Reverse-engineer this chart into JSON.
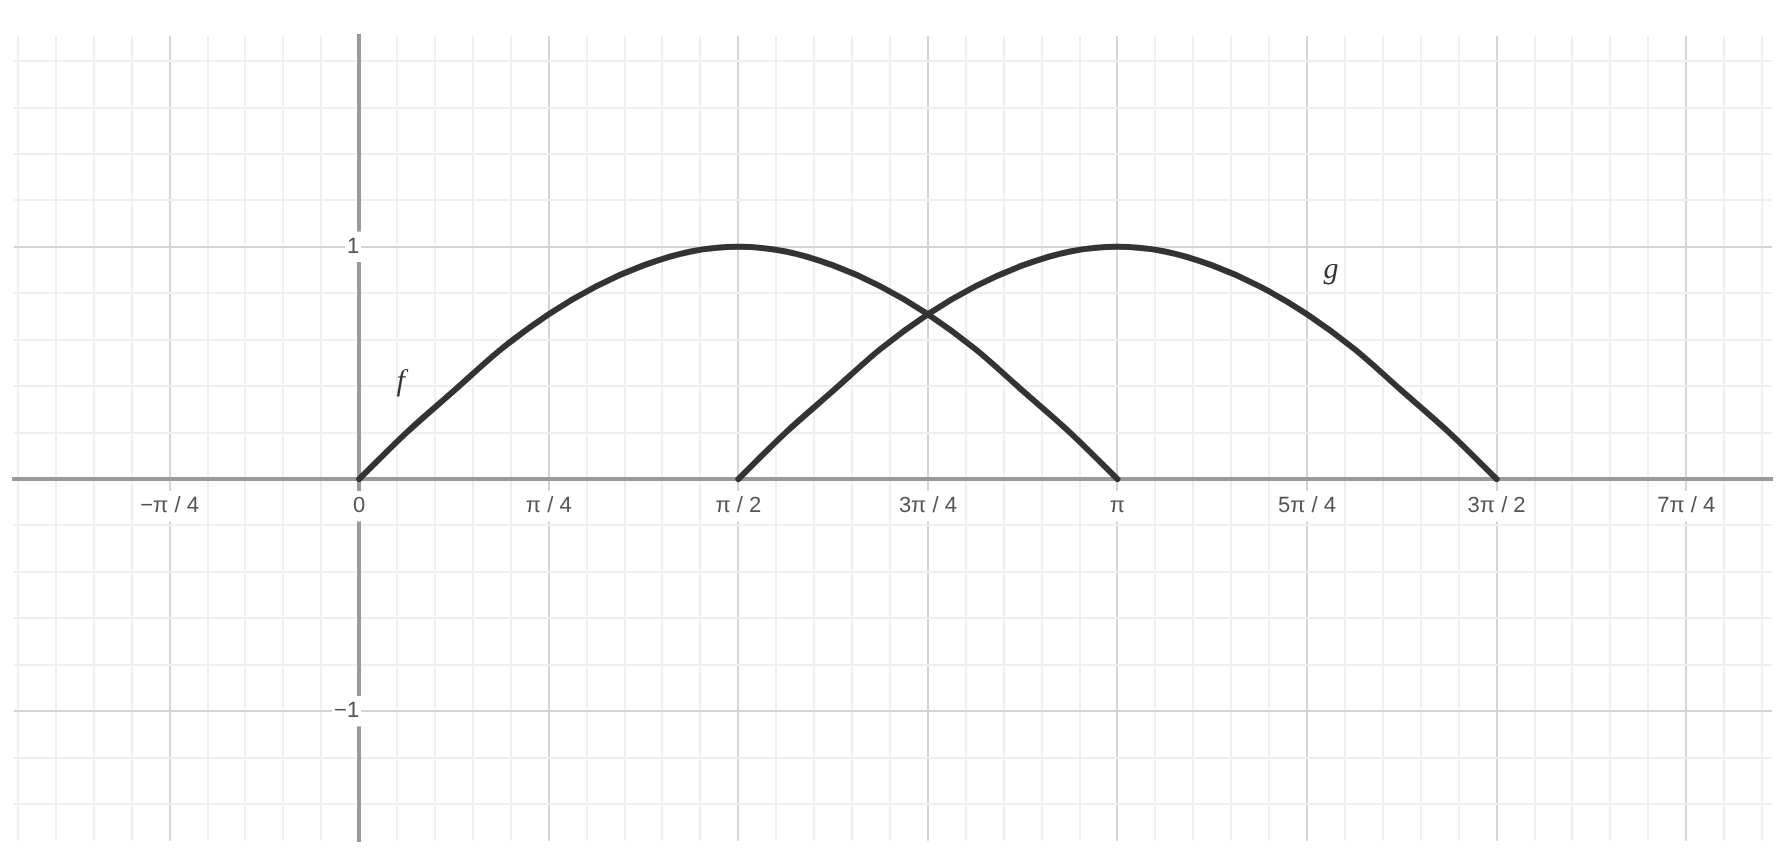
{
  "chart_data": {
    "type": "line",
    "series": [
      {
        "name": "f",
        "color": "#333333",
        "x": [
          0,
          0.1963,
          0.3927,
          0.589,
          0.7854,
          0.9817,
          1.1781,
          1.3744,
          1.5708,
          1.7671,
          1.9635,
          2.1598,
          2.3562,
          2.5525,
          2.7489,
          2.9452,
          3.1416
        ],
        "values": [
          0,
          0.2,
          0.38,
          0.56,
          0.71,
          0.83,
          0.92,
          0.98,
          1,
          0.98,
          0.92,
          0.83,
          0.71,
          0.56,
          0.38,
          0.2,
          0
        ]
      },
      {
        "name": "g",
        "color": "#333333",
        "x": [
          1.5708,
          1.7671,
          1.9635,
          2.1598,
          2.3562,
          2.5525,
          2.7489,
          2.9452,
          3.1416,
          3.3379,
          3.5343,
          3.7306,
          3.927,
          4.1233,
          4.3197,
          4.516,
          4.7124
        ],
        "values": [
          0,
          0.2,
          0.38,
          0.56,
          0.71,
          0.83,
          0.92,
          0.98,
          1,
          0.98,
          0.92,
          0.83,
          0.71,
          0.56,
          0.38,
          0.2,
          0
        ]
      }
    ],
    "xlim": [
      -1.43,
      5.853
    ],
    "ylim": [
      -1.558,
      1.908
    ],
    "xticks": [
      {
        "value": -1.4137,
        "label": null
      },
      {
        "value": -1.2566,
        "label": null
      },
      {
        "value": -1.0996,
        "label": null
      },
      {
        "value": -0.9425,
        "label": null
      },
      {
        "value": -0.7854,
        "label": "−π / 4"
      },
      {
        "value": -0.6283,
        "label": null
      },
      {
        "value": -0.4712,
        "label": null
      },
      {
        "value": -0.3142,
        "label": null
      },
      {
        "value": -0.1571,
        "label": null
      },
      0,
      {
        "value": 0.1571,
        "label": null
      },
      {
        "value": 0.3142,
        "label": null
      },
      {
        "value": 0.4712,
        "label": null
      },
      {
        "value": 0.6283,
        "label": null
      },
      {
        "value": 0.7854,
        "label": "π / 4"
      },
      {
        "value": 0.9425,
        "label": null
      },
      {
        "value": 1.0996,
        "label": null
      },
      {
        "value": 1.2566,
        "label": null
      },
      {
        "value": 1.4137,
        "label": null
      },
      {
        "value": 1.5708,
        "label": "π / 2"
      },
      {
        "value": 1.7279,
        "label": null
      },
      {
        "value": 1.885,
        "label": null
      },
      {
        "value": 2.042,
        "label": null
      },
      {
        "value": 2.1991,
        "label": null
      },
      {
        "value": 2.3562,
        "label": "3π / 4"
      },
      {
        "value": 2.5133,
        "label": null
      },
      {
        "value": 2.6704,
        "label": null
      },
      {
        "value": 2.8274,
        "label": null
      },
      {
        "value": 2.9845,
        "label": null
      },
      {
        "value": 3.1416,
        "label": "π"
      },
      {
        "value": 3.2987,
        "label": null
      },
      {
        "value": 3.4558,
        "label": null
      },
      {
        "value": 3.6128,
        "label": null
      },
      {
        "value": 3.7699,
        "label": null
      },
      {
        "value": 3.927,
        "label": "5π / 4"
      },
      {
        "value": 4.0841,
        "label": null
      },
      {
        "value": 4.2412,
        "label": null
      },
      {
        "value": 4.3982,
        "label": null
      },
      {
        "value": 4.5553,
        "label": null
      },
      {
        "value": 4.7124,
        "label": "3π / 2"
      },
      {
        "value": 4.8695,
        "label": null
      },
      {
        "value": 5.0265,
        "label": null
      },
      {
        "value": 5.1836,
        "label": null
      },
      {
        "value": 5.3407,
        "label": null
      },
      {
        "value": 5.4978,
        "label": "7π / 4"
      },
      {
        "value": 5.6549,
        "label": null
      },
      {
        "value": 5.8119,
        "label": null
      }
    ],
    "yticks": [
      {
        "value": -1.4,
        "label": null
      },
      {
        "value": -1.2,
        "label": null
      },
      {
        "value": -1,
        "label": "−1"
      },
      {
        "value": -0.8,
        "label": null
      },
      {
        "value": -0.6,
        "label": null
      },
      {
        "value": -0.4,
        "label": null
      },
      {
        "value": -0.2,
        "label": null
      },
      {
        "value": 0,
        "label": null
      },
      {
        "value": 0.2,
        "label": null
      },
      {
        "value": 0.4,
        "label": null
      },
      {
        "value": 0.6,
        "label": null
      },
      {
        "value": 0.8,
        "label": null
      },
      1,
      {
        "value": 1.2,
        "label": null
      },
      {
        "value": 1.4,
        "label": null
      },
      {
        "value": 1.6,
        "label": null
      },
      {
        "value": 1.8,
        "label": null
      }
    ],
    "grid": true,
    "legend": false,
    "marker": "none",
    "line_style": "solid"
  }
}
